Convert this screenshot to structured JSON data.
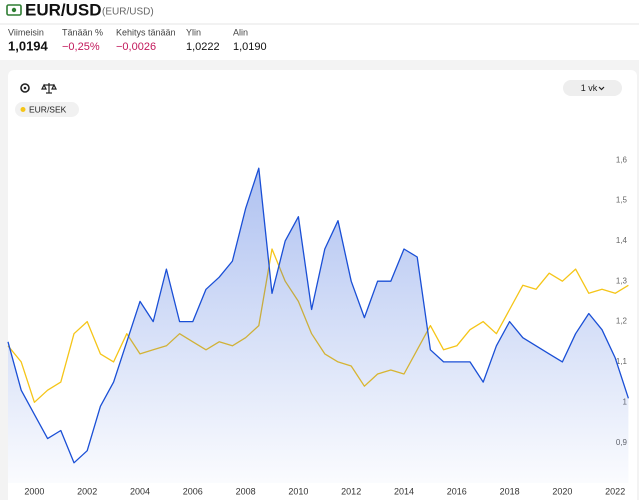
{
  "header": {
    "title": "EUR/USD",
    "subtitle": "(EUR/USD)"
  },
  "stats": [
    {
      "label": "Viimeisin",
      "value": "1,0194"
    },
    {
      "label": "Tänään %",
      "value": "−0,25%"
    },
    {
      "label": "Kehitys tänään",
      "value": "−0,0026"
    },
    {
      "label": "Ylin",
      "value": "1,0222"
    },
    {
      "label": "Alin",
      "value": "1,0190"
    }
  ],
  "controls": {
    "range": "1 vk"
  },
  "chart_data": {
    "type": "line",
    "x": [
      1999,
      1999.5,
      2000,
      2000.5,
      2001,
      2001.5,
      2002,
      2002.5,
      2003,
      2003.5,
      2004,
      2004.5,
      2005,
      2005.5,
      2006,
      2006.5,
      2007,
      2007.5,
      2008,
      2008.5,
      2009,
      2009.5,
      2010,
      2010.5,
      2011,
      2011.5,
      2012,
      2012.5,
      2013,
      2013.5,
      2014,
      2014.5,
      2015,
      2015.5,
      2016,
      2016.5,
      2017,
      2017.5,
      2018,
      2018.5,
      2019,
      2019.5,
      2020,
      2020.5,
      2021,
      2021.5,
      2022,
      2022.5
    ],
    "series": [
      {
        "color": "#1a4fd6",
        "area": true,
        "values": [
          1.15,
          1.03,
          0.97,
          0.91,
          0.93,
          0.85,
          0.88,
          0.99,
          1.05,
          1.15,
          1.25,
          1.2,
          1.33,
          1.2,
          1.2,
          1.28,
          1.31,
          1.35,
          1.48,
          1.58,
          1.27,
          1.4,
          1.46,
          1.23,
          1.38,
          1.45,
          1.3,
          1.21,
          1.3,
          1.3,
          1.38,
          1.36,
          1.13,
          1.1,
          1.1,
          1.1,
          1.05,
          1.14,
          1.2,
          1.16,
          1.14,
          1.12,
          1.1,
          1.17,
          1.22,
          1.18,
          1.11,
          1.01
        ]
      },
      {
        "name": "EUR/SEK",
        "color": "#f5c518",
        "values": [
          1.14,
          1.1,
          1.0,
          1.03,
          1.05,
          1.17,
          1.2,
          1.12,
          1.1,
          1.17,
          1.12,
          1.13,
          1.14,
          1.17,
          1.15,
          1.13,
          1.15,
          1.14,
          1.16,
          1.19,
          1.38,
          1.3,
          1.25,
          1.17,
          1.12,
          1.1,
          1.09,
          1.04,
          1.07,
          1.08,
          1.07,
          1.13,
          1.19,
          1.13,
          1.14,
          1.18,
          1.2,
          1.17,
          1.23,
          1.29,
          1.28,
          1.32,
          1.3,
          1.33,
          1.27,
          1.28,
          1.27,
          1.29
        ]
      }
    ],
    "xlim": [
      1999,
      2022.7
    ],
    "xticks": [
      2000,
      2002,
      2004,
      2006,
      2008,
      2010,
      2012,
      2014,
      2016,
      2018,
      2020,
      2022
    ],
    "ylim": [
      0.8,
      1.65
    ],
    "yticks": [
      {
        "value": 0.9,
        "label": "0,9"
      },
      1,
      {
        "value": 1.1,
        "label": "1,1"
      },
      {
        "value": 1.2,
        "label": "1,2"
      },
      {
        "value": 1.3,
        "label": "1,3"
      },
      {
        "value": 1.4,
        "label": "1,4"
      },
      {
        "value": 1.5,
        "label": "1,5"
      },
      {
        "value": 1.6,
        "label": "1,6"
      }
    ]
  }
}
